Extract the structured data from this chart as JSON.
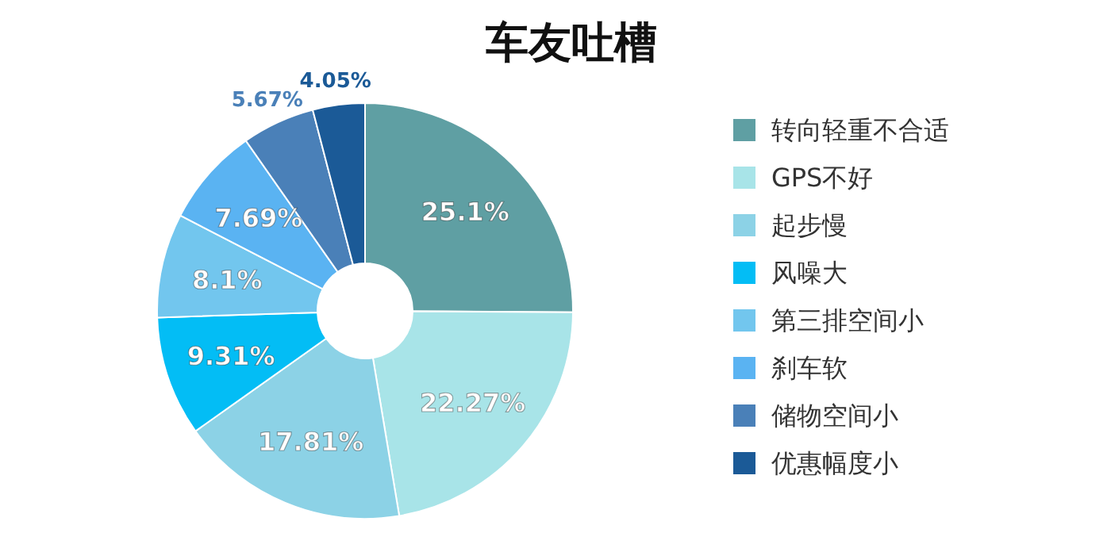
{
  "chart_data": {
    "type": "donut",
    "title": "车友吐槽",
    "categories": [
      "转向轻重不合适",
      "GPS不好",
      "起步慢",
      "风噪大",
      "第三排空间小",
      "刹车软",
      "储物空间小",
      "优惠幅度小"
    ],
    "values": [
      25.1,
      22.27,
      17.81,
      9.31,
      8.1,
      7.69,
      5.67,
      4.05
    ],
    "colors": [
      "#5f9fa3",
      "#a8e4e8",
      "#8cd2e6",
      "#03bdf5",
      "#72c6ee",
      "#5ab3f2",
      "#4a80b8",
      "#1b5a97"
    ],
    "value_labels": [
      "25.1%",
      "22.27%",
      "17.81%",
      "9.31%",
      "8.1%",
      "7.69%",
      "5.67%",
      "4.05%"
    ],
    "legend": "right"
  }
}
